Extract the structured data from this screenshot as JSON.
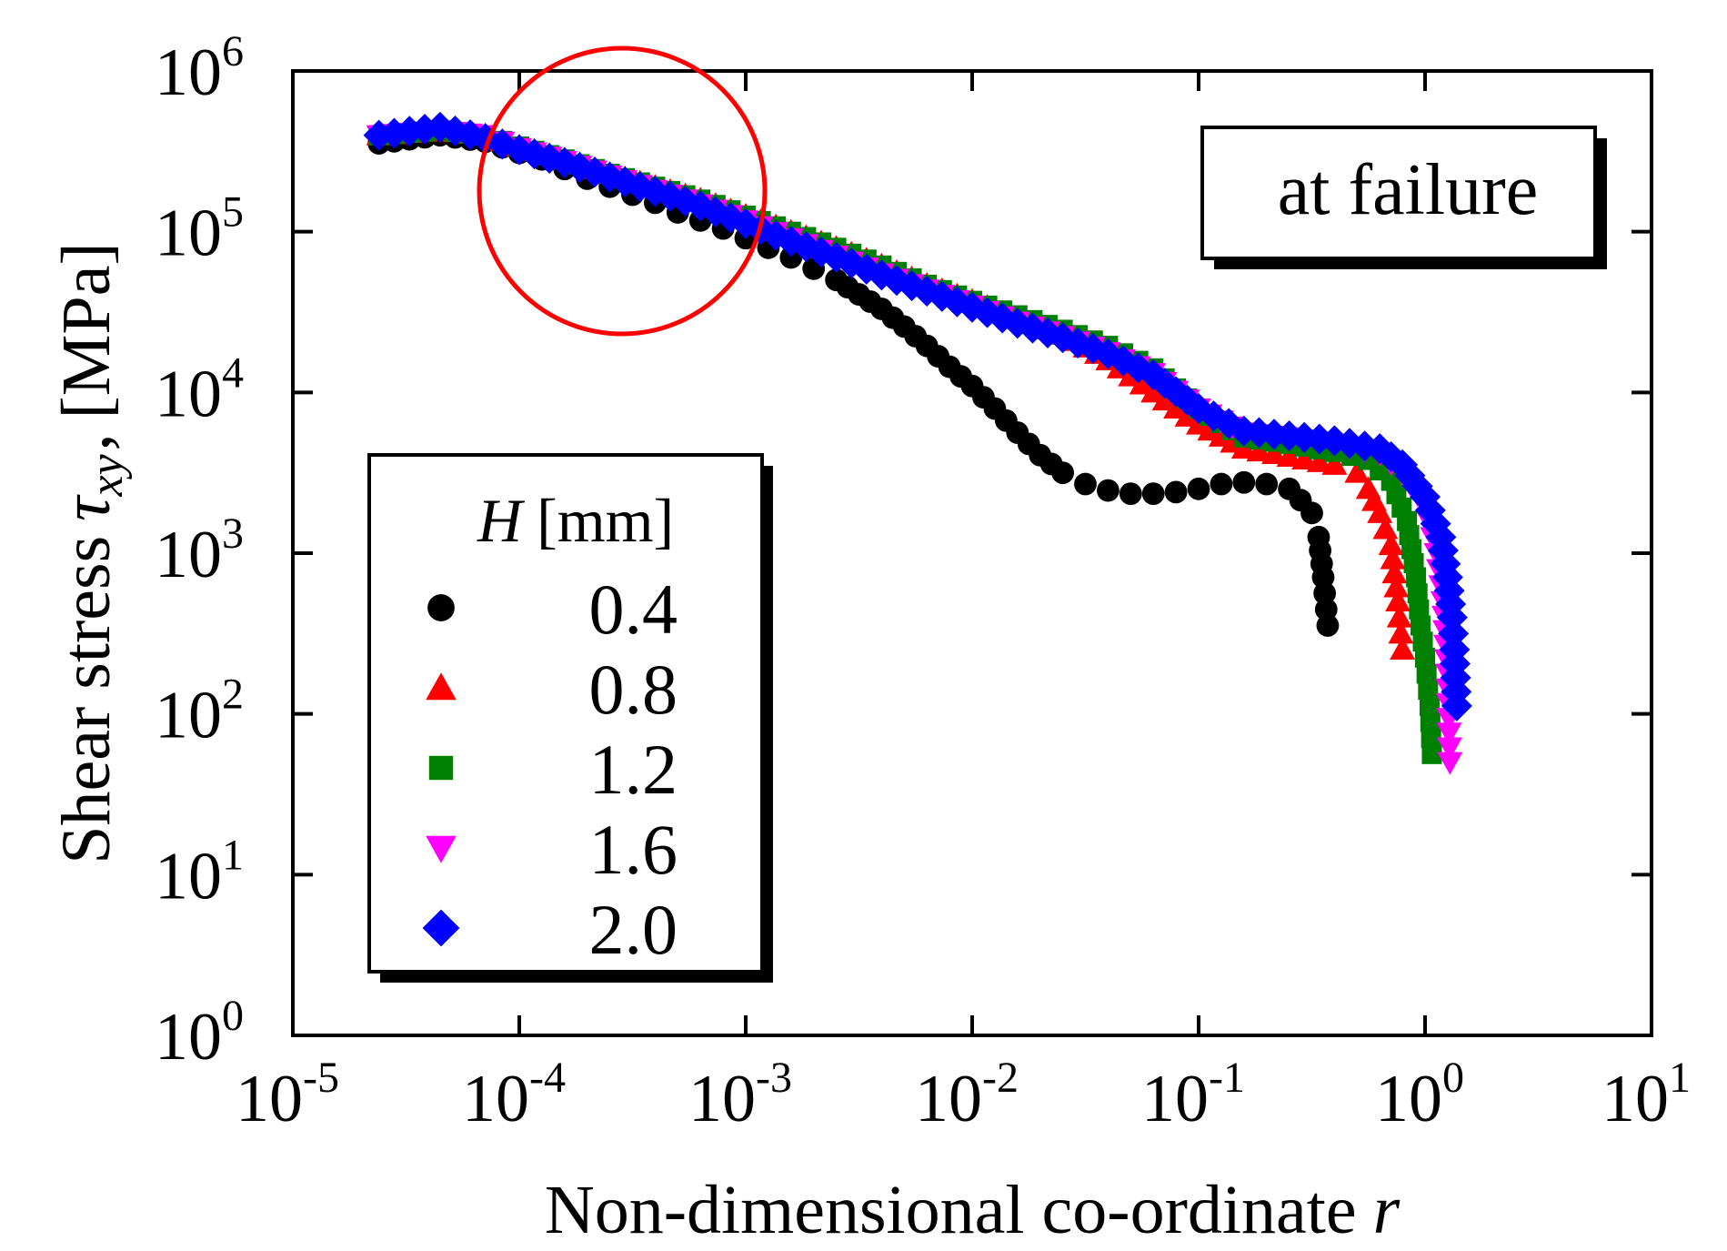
{
  "chart_data": {
    "type": "scatter",
    "xlabel": "Non-dimensional co-ordinate",
    "xlabel_symbol": "r",
    "ylabel": "Shear stress",
    "ylabel_symbol": "τ",
    "ylabel_symbol_sub": "xy",
    "ylabel_unit": "[MPa]",
    "x_scale": "log",
    "y_scale": "log",
    "xlim": [
      -5,
      1
    ],
    "ylim": [
      0,
      6
    ],
    "x_tick_exponents": [
      "-5",
      "-4",
      "-3",
      "-2",
      "-1",
      "0",
      "1"
    ],
    "y_tick_exponents": [
      "0",
      "1",
      "2",
      "3",
      "4",
      "5",
      "6"
    ],
    "tick_base": "10",
    "annotation": "at failure",
    "highlight_circle": {
      "center_x_log": -3.6,
      "center_y_log": 5.25,
      "note": "red circle marks small-r region"
    },
    "legend": {
      "title_symbol": "H",
      "title_unit": "[mm]",
      "placement": "lower-left"
    },
    "series": [
      {
        "name": "0.4",
        "color": "#000000",
        "marker": "circle",
        "points": [
          [
            -4.62,
            5.55
          ],
          [
            -4.35,
            5.6
          ],
          [
            -4.15,
            5.56
          ],
          [
            -4.0,
            5.49
          ],
          [
            -3.9,
            5.45
          ],
          [
            -3.8,
            5.39
          ],
          [
            -3.7,
            5.33
          ],
          [
            -3.6,
            5.28
          ],
          [
            -3.5,
            5.23
          ],
          [
            -3.4,
            5.18
          ],
          [
            -3.3,
            5.12
          ],
          [
            -3.2,
            5.07
          ],
          [
            -3.1,
            5.02
          ],
          [
            -3.0,
            4.96
          ],
          [
            -2.9,
            4.9
          ],
          [
            -2.8,
            4.84
          ],
          [
            -2.7,
            4.77
          ],
          [
            -2.6,
            4.7
          ],
          [
            -2.5,
            4.61
          ],
          [
            -2.4,
            4.52
          ],
          [
            -2.3,
            4.41
          ],
          [
            -2.2,
            4.29
          ],
          [
            -2.1,
            4.16
          ],
          [
            -2.0,
            4.04
          ],
          [
            -1.9,
            3.9
          ],
          [
            -1.8,
            3.75
          ],
          [
            -1.7,
            3.61
          ],
          [
            -1.6,
            3.5
          ],
          [
            -1.5,
            3.43
          ],
          [
            -1.4,
            3.39
          ],
          [
            -1.3,
            3.37
          ],
          [
            -1.2,
            3.37
          ],
          [
            -1.1,
            3.38
          ],
          [
            -1.0,
            3.4
          ],
          [
            -0.9,
            3.43
          ],
          [
            -0.8,
            3.44
          ],
          [
            -0.7,
            3.43
          ],
          [
            -0.6,
            3.4
          ],
          [
            -0.55,
            3.33
          ],
          [
            -0.5,
            3.25
          ],
          [
            -0.47,
            3.1
          ],
          [
            -0.45,
            2.85
          ],
          [
            -0.43,
            2.55
          ]
        ]
      },
      {
        "name": "0.8",
        "color": "#ff0000",
        "marker": "triangle-up",
        "points": [
          [
            -4.62,
            5.6
          ],
          [
            -4.35,
            5.63
          ],
          [
            -4.15,
            5.6
          ],
          [
            -4.0,
            5.53
          ],
          [
            -3.8,
            5.45
          ],
          [
            -3.6,
            5.36
          ],
          [
            -3.4,
            5.28
          ],
          [
            -3.2,
            5.2
          ],
          [
            -3.0,
            5.1
          ],
          [
            -2.8,
            5.0
          ],
          [
            -2.6,
            4.9
          ],
          [
            -2.4,
            4.79
          ],
          [
            -2.2,
            4.67
          ],
          [
            -2.0,
            4.57
          ],
          [
            -1.8,
            4.46
          ],
          [
            -1.6,
            4.36
          ],
          [
            -1.4,
            4.2
          ],
          [
            -1.2,
            4.0
          ],
          [
            -1.0,
            3.8
          ],
          [
            -0.8,
            3.65
          ],
          [
            -0.6,
            3.6
          ],
          [
            -0.4,
            3.55
          ],
          [
            -0.3,
            3.5
          ],
          [
            -0.25,
            3.4
          ],
          [
            -0.2,
            3.25
          ],
          [
            -0.15,
            3.05
          ],
          [
            -0.12,
            2.7
          ],
          [
            -0.1,
            2.4
          ]
        ]
      },
      {
        "name": "1.2",
        "color": "#008000",
        "marker": "square",
        "points": [
          [
            -4.62,
            5.6
          ],
          [
            -4.35,
            5.63
          ],
          [
            -4.15,
            5.6
          ],
          [
            -4.0,
            5.53
          ],
          [
            -3.8,
            5.45
          ],
          [
            -3.6,
            5.36
          ],
          [
            -3.4,
            5.28
          ],
          [
            -3.2,
            5.2
          ],
          [
            -3.0,
            5.1
          ],
          [
            -2.8,
            5.0
          ],
          [
            -2.6,
            4.9
          ],
          [
            -2.4,
            4.79
          ],
          [
            -2.2,
            4.67
          ],
          [
            -2.0,
            4.57
          ],
          [
            -1.8,
            4.48
          ],
          [
            -1.6,
            4.39
          ],
          [
            -1.4,
            4.29
          ],
          [
            -1.2,
            4.15
          ],
          [
            -1.0,
            3.9
          ],
          [
            -0.8,
            3.72
          ],
          [
            -0.6,
            3.68
          ],
          [
            -0.4,
            3.63
          ],
          [
            -0.25,
            3.58
          ],
          [
            -0.15,
            3.45
          ],
          [
            -0.08,
            3.2
          ],
          [
            -0.04,
            2.85
          ],
          [
            -0.02,
            2.55
          ],
          [
            0.0,
            2.35
          ],
          [
            0.02,
            2.05
          ],
          [
            0.03,
            1.75
          ]
        ]
      },
      {
        "name": "1.6",
        "color": "#ff00ff",
        "marker": "triangle-down",
        "points": [
          [
            -4.62,
            5.6
          ],
          [
            -4.35,
            5.63
          ],
          [
            -4.15,
            5.6
          ],
          [
            -4.0,
            5.52
          ],
          [
            -3.8,
            5.44
          ],
          [
            -3.6,
            5.35
          ],
          [
            -3.4,
            5.26
          ],
          [
            -3.2,
            5.17
          ],
          [
            -3.0,
            5.07
          ],
          [
            -2.8,
            4.96
          ],
          [
            -2.6,
            4.85
          ],
          [
            -2.4,
            4.74
          ],
          [
            -2.2,
            4.64
          ],
          [
            -2.0,
            4.54
          ],
          [
            -1.8,
            4.44
          ],
          [
            -1.6,
            4.35
          ],
          [
            -1.4,
            4.25
          ],
          [
            -1.2,
            4.12
          ],
          [
            -1.0,
            3.9
          ],
          [
            -0.8,
            3.75
          ],
          [
            -0.6,
            3.72
          ],
          [
            -0.4,
            3.68
          ],
          [
            -0.2,
            3.62
          ],
          [
            -0.1,
            3.5
          ],
          [
            0.0,
            3.3
          ],
          [
            0.05,
            3.0
          ],
          [
            0.08,
            2.7
          ],
          [
            0.1,
            2.25
          ],
          [
            0.11,
            1.7
          ]
        ]
      },
      {
        "name": "2.0",
        "color": "#0000ff",
        "marker": "diamond",
        "points": [
          [
            -4.62,
            5.6
          ],
          [
            -4.35,
            5.65
          ],
          [
            -4.15,
            5.58
          ],
          [
            -4.0,
            5.51
          ],
          [
            -3.8,
            5.43
          ],
          [
            -3.6,
            5.34
          ],
          [
            -3.4,
            5.25
          ],
          [
            -3.2,
            5.16
          ],
          [
            -3.0,
            5.05
          ],
          [
            -2.8,
            4.94
          ],
          [
            -2.6,
            4.84
          ],
          [
            -2.4,
            4.73
          ],
          [
            -2.2,
            4.63
          ],
          [
            -2.0,
            4.53
          ],
          [
            -1.8,
            4.43
          ],
          [
            -1.6,
            4.34
          ],
          [
            -1.4,
            4.24
          ],
          [
            -1.2,
            4.11
          ],
          [
            -1.0,
            3.9
          ],
          [
            -0.8,
            3.76
          ],
          [
            -0.6,
            3.73
          ],
          [
            -0.4,
            3.7
          ],
          [
            -0.2,
            3.65
          ],
          [
            -0.1,
            3.55
          ],
          [
            0.0,
            3.35
          ],
          [
            0.07,
            3.1
          ],
          [
            0.1,
            2.85
          ],
          [
            0.12,
            2.6
          ],
          [
            0.13,
            2.4
          ],
          [
            0.14,
            2.05
          ]
        ]
      }
    ]
  }
}
